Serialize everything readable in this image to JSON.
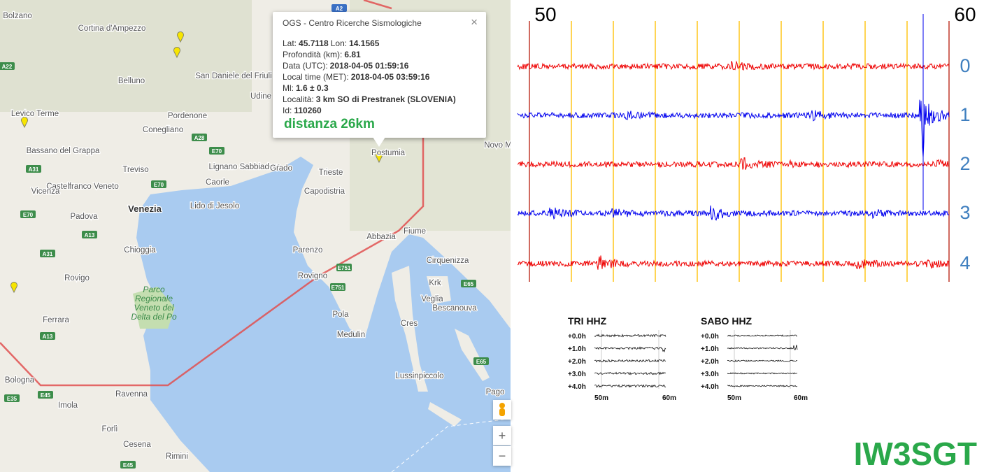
{
  "map": {
    "labels": [
      "Bolzano",
      "Cortina d'Ampezzo",
      "Belluno",
      "Udine",
      "Pordenone",
      "Conegliano",
      "Bassano del Grappa",
      "Levico Terme",
      "San Daniele del Friuli",
      "Treviso",
      "Castelfranco Veneto",
      "Vicenza",
      "Padova",
      "Venezia",
      "Lignano Sabbiadoro",
      "Grado",
      "Caorle",
      "Lido di Jesolo",
      "Trieste",
      "Capodistria",
      "Postumia",
      "Fiume",
      "Abbazia",
      "Parenzo",
      "Rovigno",
      "Pola",
      "Medulin",
      "Cirquenizza",
      "Krk",
      "Veglia",
      "Bescanouva",
      "Cres",
      "Lussinpiccolo",
      "Novo M",
      "Chioggia",
      "Rovigo",
      "Ferrara",
      "Bologna",
      "Imola",
      "Ravenna",
      "Forlì",
      "Cesena",
      "Rimini",
      "Pago"
    ],
    "roads": [
      "A22",
      "A28",
      "E70",
      "E70",
      "A31",
      "A13",
      "E70",
      "A31",
      "A13",
      "E35",
      "E45",
      "E45",
      "E751",
      "E751",
      "E65",
      "E65",
      "A2"
    ],
    "park": [
      "Parco",
      "Regionale",
      "Veneto del",
      "Delta del Po"
    ],
    "zoom_in": "+",
    "zoom_out": "−"
  },
  "popup": {
    "title": "OGS - Centro Ricerche Sismologiche",
    "close": "×",
    "rows": [
      [
        {
          "label": "Lat:",
          "value": "45.7118"
        },
        {
          "label": "Lon:",
          "value": "14.1565"
        }
      ],
      [
        {
          "label": "Profondità (km):",
          "value": "6.81"
        }
      ],
      [
        {
          "label": "Data (UTC):",
          "value": "2018-04-05 01:59:16"
        }
      ],
      [
        {
          "label": "Local time (MET):",
          "value": "2018-04-05 03:59:16"
        }
      ],
      [
        {
          "label": "Ml:",
          "value": "1.6 ± 0.3"
        }
      ],
      [
        {
          "label": "Località:",
          "value": "3 km SO di Prestranek (SLOVENIA)"
        }
      ],
      [
        {
          "label": "Id:",
          "value": "110260"
        }
      ]
    ],
    "distance": "distanza 26km"
  },
  "seismogram": {
    "start": "50",
    "end": "60",
    "rows": [
      "0",
      "1",
      "2",
      "3",
      "4"
    ]
  },
  "thumbnails": [
    {
      "title": "TRI HHZ",
      "rows": [
        "+0.0h",
        "+1.0h",
        "+2.0h",
        "+3.0h",
        "+4.0h"
      ],
      "start": "50m",
      "end": "60m"
    },
    {
      "title": "SABO HHZ",
      "rows": [
        "+0.0h",
        "+1.0h",
        "+2.0h",
        "+3.0h",
        "+4.0h"
      ],
      "start": "50m",
      "end": "60m"
    }
  ],
  "callsign": "IW3SGT"
}
